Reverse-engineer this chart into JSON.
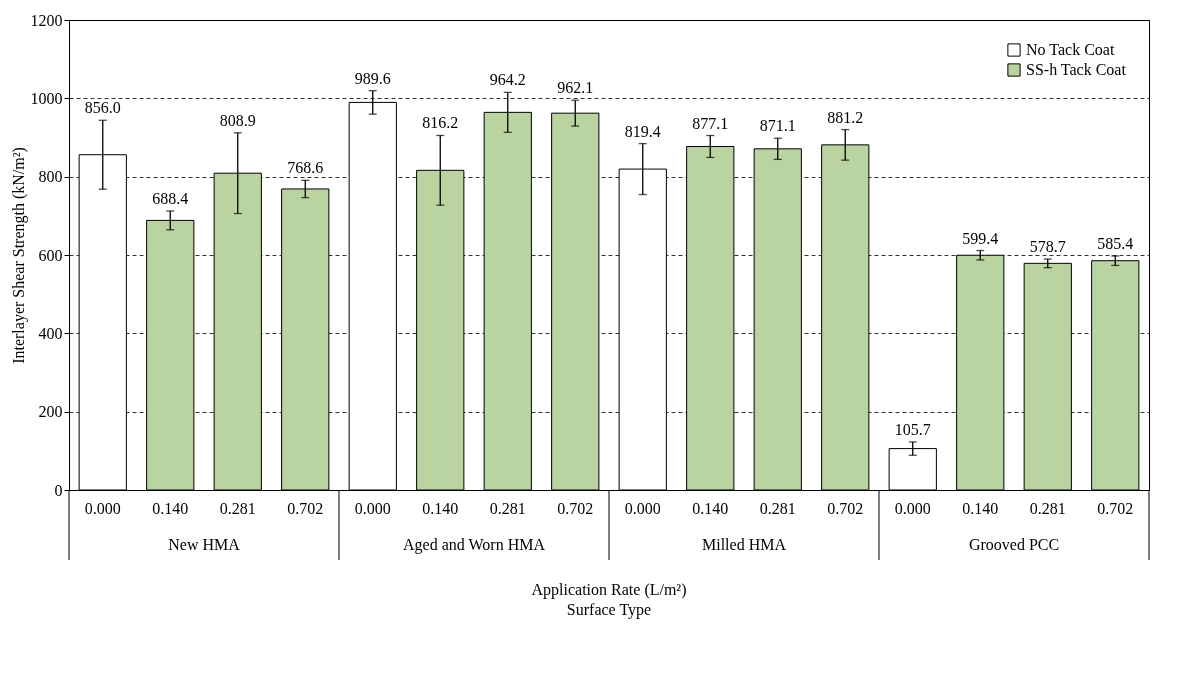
{
  "chart_data": {
    "type": "bar",
    "xlabel": "Application Rate (L/m²)",
    "ylabel": "Interlayer Shear Strength (kN/m²)",
    "categories": [
      "0.000",
      "0.140",
      "0.281",
      "0.702",
      "0.000",
      "0.140",
      "0.281",
      "0.702",
      "0.000",
      "0.140",
      "0.281",
      "0.702",
      "0.000",
      "0.140",
      "0.281",
      "0.702"
    ],
    "series": [
      {
        "name": "No Tack Coat",
        "color": "#ffffff",
        "values": [
          856.0,
          null,
          null,
          null,
          989.6,
          null,
          null,
          null,
          819.4,
          null,
          null,
          null,
          105.7,
          null,
          null,
          null
        ],
        "errors": [
          88,
          null,
          null,
          null,
          30,
          null,
          null,
          null,
          65,
          null,
          null,
          null,
          17,
          null,
          null,
          null
        ],
        "value_labels": [
          "856.0",
          null,
          null,
          null,
          "989.6",
          null,
          null,
          null,
          "819.4",
          null,
          null,
          null,
          "105.7",
          null,
          null,
          null
        ]
      },
      {
        "name": "SS-h Tack Coat",
        "color": "#b9d4a0",
        "values": [
          null,
          688.4,
          808.9,
          768.6,
          null,
          816.2,
          964.2,
          962.1,
          null,
          877.1,
          871.1,
          881.2,
          null,
          599.4,
          578.7,
          585.4
        ],
        "errors": [
          null,
          24,
          103,
          22,
          null,
          89,
          51,
          33,
          null,
          28,
          27,
          39,
          null,
          12,
          11,
          12
        ],
        "value_labels": [
          null,
          "688.4",
          "808.9",
          "768.6",
          null,
          "816.2",
          "964.2",
          "962.1",
          null,
          "877.1",
          "871.1",
          "881.2",
          null,
          "599.4",
          "578.7",
          "585.4"
        ]
      }
    ],
    "ylim": [
      0,
      1200
    ],
    "yticks": [
      0,
      200,
      400,
      600,
      800,
      1000,
      1200
    ],
    "grid": "y",
    "legend": "top right",
    "annotations": [
      "New HMA",
      "Aged and Worn HMA",
      "Milled HMA",
      "Grooved PCC",
      "Surface Type"
    ]
  }
}
